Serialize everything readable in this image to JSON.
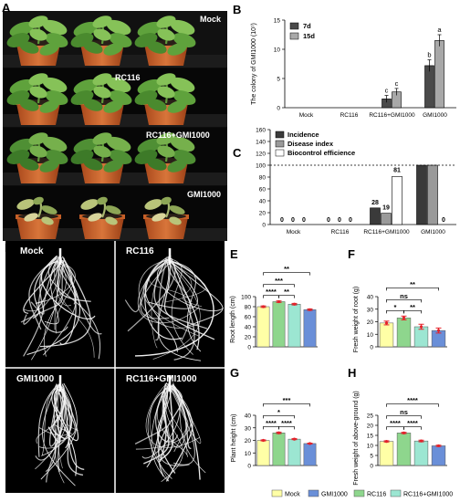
{
  "panels": {
    "A": {
      "label": "A",
      "strips": [
        {
          "name": "Mock"
        },
        {
          "name": "RC116"
        },
        {
          "name": "RC116+GMI1000"
        },
        {
          "name": "GMI1000"
        }
      ]
    },
    "D": {
      "label": "D",
      "quadrants": [
        {
          "name": "Mock"
        },
        {
          "name": "RC116"
        },
        {
          "name": "GMI1000"
        },
        {
          "name": "RC116+GMI1000"
        }
      ]
    }
  },
  "colors": {
    "mock": "#ffffa6",
    "rc116": "#8ed68d",
    "combo": "#9ce6d2",
    "gmi": "#6a8fd8",
    "d7": "#4a4a4a",
    "d15": "#a8a8a8",
    "incidence": "#3a3a3a",
    "disease": "#9a9a9a",
    "biocontrol": "#ffffff"
  },
  "legend_bottom": [
    "Mock",
    "GMI1000",
    "RC116",
    "RC116+GMI1000"
  ],
  "chart_data": [
    {
      "id": "B",
      "panel_label": "B",
      "type": "bar",
      "ylabel": "The colony of GMI1000 (10⁷)",
      "ylim": [
        0,
        15
      ],
      "yticks": [
        0,
        5,
        10,
        15
      ],
      "categories": [
        "Mock",
        "RC116",
        "RC116+GMI1000",
        "GMI1000"
      ],
      "series": [
        {
          "name": "7d",
          "values": [
            0,
            0,
            1.5,
            7.2
          ],
          "errors": [
            0,
            0,
            0.6,
            1.0
          ],
          "color": "#4a4a4a"
        },
        {
          "name": "15d",
          "values": [
            0,
            0,
            2.7,
            11.5
          ],
          "errors": [
            0,
            0,
            0.6,
            1.0
          ],
          "color": "#a8a8a8"
        }
      ],
      "annotations": [
        "c",
        "c",
        "b",
        "a"
      ],
      "legend_position": "top-left"
    },
    {
      "id": "C",
      "panel_label": "C",
      "type": "bar",
      "ylim": [
        0,
        160
      ],
      "yticks": [
        0,
        20,
        40,
        60,
        80,
        100,
        120,
        140,
        160
      ],
      "categories": [
        "Mock",
        "RC116",
        "RC116+GMI1000",
        "GMI1000"
      ],
      "series": [
        {
          "name": "Incidence",
          "values": [
            0,
            0,
            28,
            100
          ],
          "color": "#3a3a3a"
        },
        {
          "name": "Disease index",
          "values": [
            0,
            0,
            19,
            100
          ],
          "color": "#9a9a9a"
        },
        {
          "name": "Biocontrol efficience",
          "values": [
            0,
            0,
            81,
            0
          ],
          "color": "#ffffff"
        }
      ],
      "data_labels": [
        [
          "0",
          "0",
          "0"
        ],
        [
          "0",
          "0",
          "0"
        ],
        [
          "28",
          "19",
          "81"
        ],
        [
          "",
          "",
          "0"
        ]
      ],
      "reference_line": 100,
      "legend_position": "top-left"
    },
    {
      "id": "E",
      "panel_label": "E",
      "type": "bar",
      "ylabel": "Root length (cm)",
      "ylim": [
        0,
        100
      ],
      "yticks": [
        0,
        20,
        40,
        60,
        80,
        100
      ],
      "categories": [
        "Mock",
        "RC116",
        "RC116+GMI1000",
        "GMI1000"
      ],
      "values": [
        80,
        90,
        85,
        74
      ],
      "errors": [
        1.5,
        1.5,
        1.5,
        1.5
      ],
      "significance": [
        {
          "from": 0,
          "to": 1,
          "label": "****"
        },
        {
          "from": 1,
          "to": 2,
          "label": "**"
        },
        {
          "from": 0,
          "to": 2,
          "label": "***"
        },
        {
          "from": 0,
          "to": 3,
          "label": "**"
        }
      ]
    },
    {
      "id": "F",
      "panel_label": "F",
      "type": "bar",
      "ylabel": "Fresh weight of root (g)",
      "ylim": [
        0,
        40
      ],
      "yticks": [
        0,
        10,
        20,
        30,
        40
      ],
      "categories": [
        "Mock",
        "RC116",
        "RC116+GMI1000",
        "GMI1000"
      ],
      "values": [
        19,
        23,
        16,
        13
      ],
      "errors": [
        1.5,
        1.5,
        2,
        2
      ],
      "significance": [
        {
          "from": 0,
          "to": 1,
          "label": "*"
        },
        {
          "from": 1,
          "to": 2,
          "label": "**"
        },
        {
          "from": 0,
          "to": 2,
          "label": "ns"
        },
        {
          "from": 0,
          "to": 3,
          "label": "**"
        }
      ]
    },
    {
      "id": "G",
      "panel_label": "G",
      "type": "bar",
      "ylabel": "Plant height (cm)",
      "ylim": [
        0,
        40
      ],
      "yticks": [
        0,
        10,
        20,
        30,
        40
      ],
      "categories": [
        "Mock",
        "RC116",
        "RC116+GMI1000",
        "GMI1000"
      ],
      "values": [
        20,
        26,
        21,
        17.5
      ],
      "errors": [
        0.4,
        0.6,
        0.4,
        0.3
      ],
      "significance": [
        {
          "from": 0,
          "to": 1,
          "label": "****"
        },
        {
          "from": 1,
          "to": 2,
          "label": "****"
        },
        {
          "from": 0,
          "to": 2,
          "label": "*"
        },
        {
          "from": 0,
          "to": 3,
          "label": "***"
        }
      ]
    },
    {
      "id": "H",
      "panel_label": "H",
      "type": "bar",
      "ylabel": "Fresh weight of above-ground (g)",
      "ylim": [
        0,
        25
      ],
      "yticks": [
        0,
        5,
        10,
        15,
        20,
        25
      ],
      "categories": [
        "Mock",
        "RC116",
        "RC116+GMI1000",
        "GMI1000"
      ],
      "values": [
        12,
        16.2,
        12.2,
        9.8
      ],
      "errors": [
        0.3,
        0.3,
        0.4,
        0.3
      ],
      "significance": [
        {
          "from": 0,
          "to": 1,
          "label": "****"
        },
        {
          "from": 1,
          "to": 2,
          "label": "****"
        },
        {
          "from": 0,
          "to": 2,
          "label": "ns"
        },
        {
          "from": 0,
          "to": 3,
          "label": "****"
        }
      ]
    }
  ]
}
